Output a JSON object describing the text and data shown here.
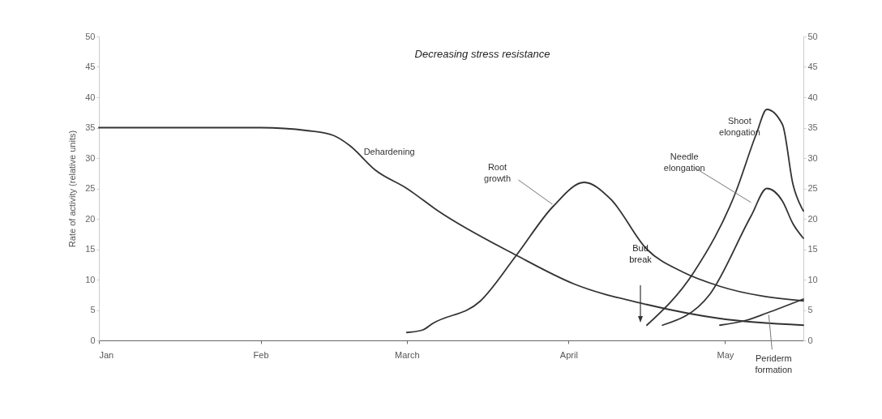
{
  "chart_data": {
    "type": "line",
    "ylabel": "Rate of activity (relative units)",
    "annotations": [
      "Decreasing stress resistance",
      "Bud break"
    ],
    "xlim": [
      "--01-01",
      "--05-16"
    ],
    "xticks": [
      {
        "value": "--01-01",
        "label": "Jan"
      },
      {
        "value": "--02-01",
        "label": "Feb"
      },
      {
        "value": "--03-01",
        "label": "March"
      },
      {
        "value": "--04-01",
        "label": "April"
      },
      {
        "value": "--05-01",
        "label": "May"
      }
    ],
    "ylim": [
      0,
      50
    ],
    "yticks": [
      0,
      5,
      10,
      15,
      20,
      25,
      30,
      35,
      40,
      45,
      50
    ],
    "y2lim": [
      0,
      50
    ],
    "y2ticks": [
      0,
      5,
      10,
      15,
      20,
      25,
      30,
      35,
      40,
      45,
      50
    ],
    "grid": false,
    "marker": "none",
    "line_style": "solid",
    "series": [
      {
        "name": "Dehardening",
        "color": "#333333",
        "x": [
          "--01-01",
          "--02-01",
          "--02-10",
          "--02-15",
          "--02-18",
          "--02-23",
          "--03-01",
          "--03-07",
          "--03-22",
          "--04-02",
          "--04-16",
          "--04-30",
          "--05-16"
        ],
        "values": [
          35,
          35,
          34.5,
          33.7,
          32.1,
          28,
          25,
          21.3,
          14,
          9.3,
          5.9,
          3.6,
          2.5
        ]
      },
      {
        "name": "Root growth",
        "color": "#333333",
        "x": [
          "--03-01",
          "--03-04",
          "--03-06",
          "--03-15",
          "--03-22",
          "--03-29",
          "--04-04",
          "--04-09",
          "--04-16",
          "--04-23",
          "--04-30",
          "--05-16"
        ],
        "values": [
          1.3,
          1.7,
          2.8,
          6.4,
          14,
          22,
          26,
          23.3,
          15,
          11.2,
          8.9,
          6.5
        ]
      },
      {
        "name": "Shoot elongation",
        "color": "#333333",
        "x": [
          "--04-16",
          "--04-25",
          "--05-03",
          "--05-07",
          "--05-09",
          "--05-12",
          "--05-14",
          "--05-16"
        ],
        "values": [
          2.5,
          11.2,
          24.3,
          34,
          38,
          35.5,
          25.7,
          21.3
        ]
      },
      {
        "name": "Needle elongation",
        "color": "#333333",
        "x": [
          "--04-19",
          "--04-28",
          "--05-06",
          "--05-09",
          "--05-12",
          "--05-14",
          "--05-16"
        ],
        "values": [
          2.5,
          7.5,
          20.5,
          25,
          22.9,
          19.2,
          16.8
        ]
      },
      {
        "name": "Periderm formation",
        "color": "#333333",
        "x": [
          "--04-30",
          "--05-05",
          "--05-09",
          "--05-16"
        ],
        "values": [
          2.5,
          3.3,
          4.5,
          6.8
        ]
      }
    ]
  }
}
